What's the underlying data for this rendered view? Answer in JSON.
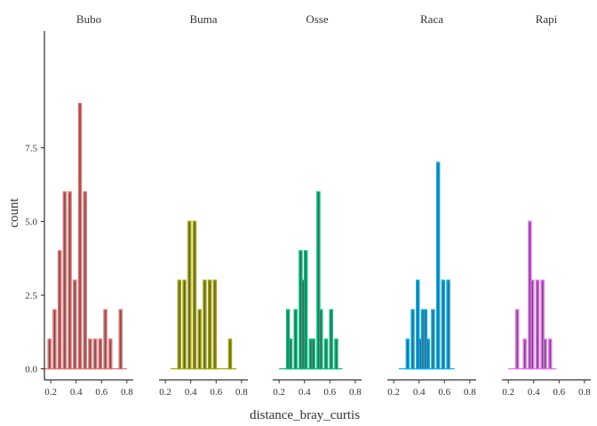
{
  "chart_data": {
    "type": "bar",
    "xlabel": "distance_bray_curtis",
    "ylabel": "count",
    "ylim": [
      0,
      9
    ],
    "yticks": [
      "0.0",
      "2.5",
      "5.0",
      "7.5"
    ],
    "xticks": [
      "0.2",
      "0.4",
      "0.6",
      "0.8"
    ],
    "xlim": [
      0.15,
      0.85
    ],
    "bin_width": 0.02,
    "panels": [
      {
        "name": "Bubo",
        "color": "#E76F6F",
        "bins": [
          [
            0.18,
            1
          ],
          [
            0.22,
            2
          ],
          [
            0.26,
            4
          ],
          [
            0.3,
            6
          ],
          [
            0.34,
            6
          ],
          [
            0.38,
            3
          ],
          [
            0.42,
            9
          ],
          [
            0.46,
            6
          ],
          [
            0.5,
            1
          ],
          [
            0.54,
            1
          ],
          [
            0.58,
            1
          ],
          [
            0.62,
            2
          ],
          [
            0.66,
            1
          ],
          [
            0.74,
            2
          ]
        ]
      },
      {
        "name": "Buma",
        "color": "#A3A500",
        "bins": [
          [
            0.3,
            3
          ],
          [
            0.34,
            3
          ],
          [
            0.38,
            5
          ],
          [
            0.42,
            5
          ],
          [
            0.46,
            2
          ],
          [
            0.5,
            3
          ],
          [
            0.54,
            3
          ],
          [
            0.58,
            3
          ],
          [
            0.7,
            1
          ]
        ]
      },
      {
        "name": "Osse",
        "color": "#00BF7D",
        "bins": [
          [
            0.26,
            2
          ],
          [
            0.28,
            1
          ],
          [
            0.32,
            2
          ],
          [
            0.36,
            4
          ],
          [
            0.38,
            3
          ],
          [
            0.4,
            4
          ],
          [
            0.44,
            1
          ],
          [
            0.46,
            1
          ],
          [
            0.5,
            6
          ],
          [
            0.52,
            2
          ],
          [
            0.56,
            1
          ],
          [
            0.6,
            2
          ],
          [
            0.64,
            1
          ]
        ]
      },
      {
        "name": "Raca",
        "color": "#00B0F6",
        "bins": [
          [
            0.3,
            1
          ],
          [
            0.34,
            2
          ],
          [
            0.38,
            3
          ],
          [
            0.4,
            1
          ],
          [
            0.42,
            2
          ],
          [
            0.44,
            2
          ],
          [
            0.46,
            1
          ],
          [
            0.5,
            2
          ],
          [
            0.54,
            7
          ],
          [
            0.58,
            3
          ],
          [
            0.62,
            3
          ]
        ]
      },
      {
        "name": "Rapi",
        "color": "#E76BF3",
        "bins": [
          [
            0.26,
            2
          ],
          [
            0.32,
            1
          ],
          [
            0.36,
            5
          ],
          [
            0.38,
            3
          ],
          [
            0.42,
            3
          ],
          [
            0.46,
            3
          ],
          [
            0.48,
            1
          ],
          [
            0.52,
            1
          ]
        ]
      }
    ]
  }
}
